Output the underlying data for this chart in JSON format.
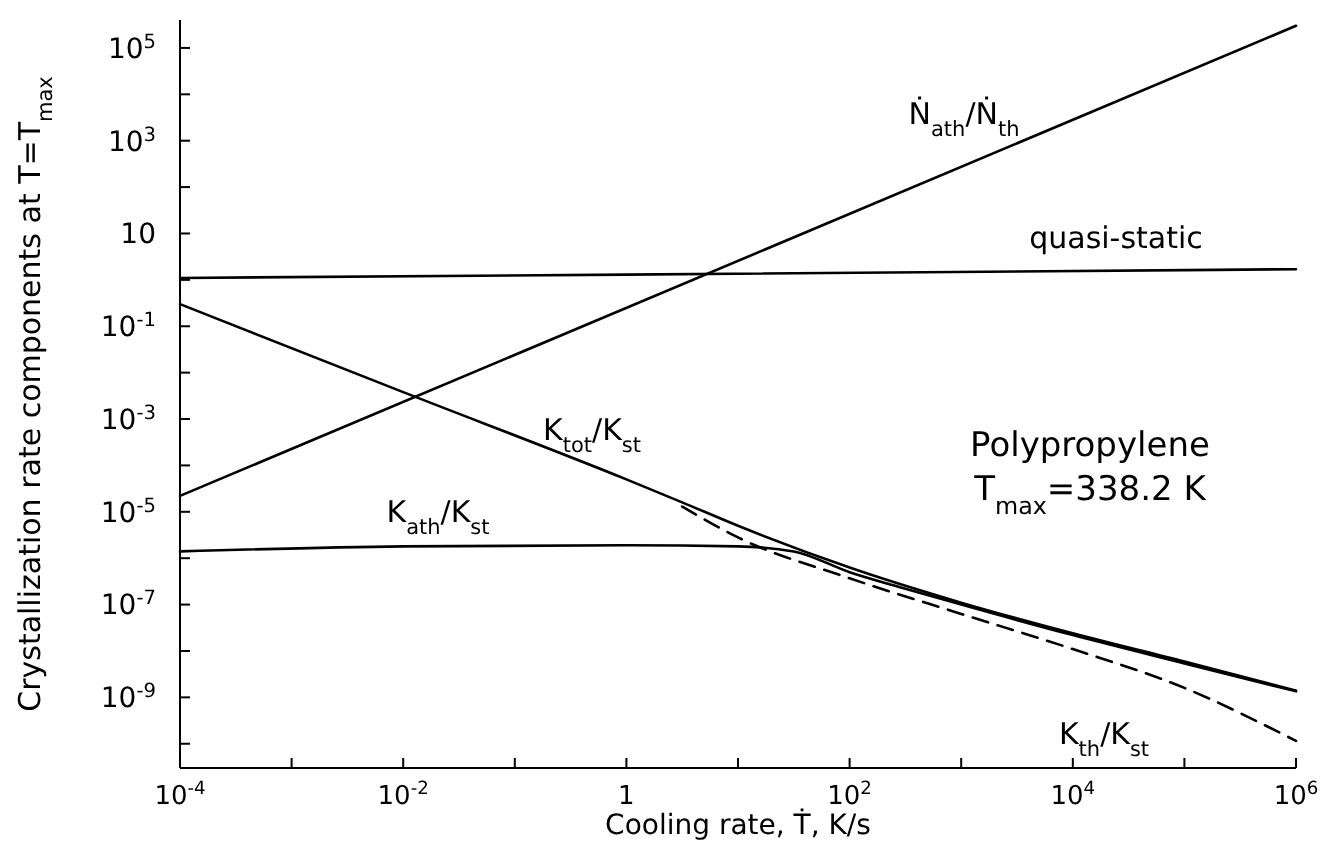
{
  "chart_data": {
    "type": "line",
    "xlabel": "Cooling rate, Ṫ, K/s",
    "ylabel": "Crystallization rate components at T=T$_{max}$",
    "log": "xy",
    "grid": false,
    "marker": "none",
    "xlim": [
      0.0001,
      1000000
    ],
    "ylim": [
      3e-11,
      400000
    ],
    "xticks": [
      {
        "value": 0.0001,
        "label": "10$^{-4}$"
      },
      {
        "value": 0.001,
        "label": null
      },
      {
        "value": 0.01,
        "label": "10$^{-2}$"
      },
      {
        "value": 0.1,
        "label": null
      },
      {
        "value": 1,
        "label": "1"
      },
      {
        "value": 10,
        "label": null
      },
      {
        "value": 100,
        "label": "10$^{2}$"
      },
      {
        "value": 1000,
        "label": null
      },
      {
        "value": 10000,
        "label": "10$^{4}$"
      },
      {
        "value": 100000,
        "label": null
      },
      {
        "value": 1000000,
        "label": "10$^{6}$"
      }
    ],
    "yticks": [
      {
        "value": 100000,
        "label": "10$^{5}$"
      },
      {
        "value": 10000,
        "label": null
      },
      {
        "value": 1000,
        "label": "10$^{3}$"
      },
      {
        "value": 100,
        "label": null
      },
      {
        "value": 10,
        "label": "10"
      },
      {
        "value": 1,
        "label": null
      },
      {
        "value": 0.1,
        "label": "10$^{-1}$"
      },
      {
        "value": 0.01,
        "label": null
      },
      {
        "value": 0.001,
        "label": "10$^{-3}$"
      },
      {
        "value": 0.0001,
        "label": null
      },
      {
        "value": 1e-05,
        "label": "10$^{-5}$"
      },
      {
        "value": 1e-06,
        "label": null
      },
      {
        "value": 1e-07,
        "label": "10$^{-7}$"
      },
      {
        "value": 1e-08,
        "label": null
      },
      {
        "value": 1e-09,
        "label": "10$^{-9}$"
      },
      {
        "value": 1e-10,
        "label": null
      }
    ],
    "series": [
      {
        "name": "Ṅ$_{ath}$/Ṅ$_{th}$",
        "color": "#000000",
        "x": [
          0.0001,
          1000000
        ],
        "values": [
          2.2e-05,
          300000
        ]
      },
      {
        "name": "quasi-static",
        "color": "#000000",
        "x": [
          0.0001,
          1,
          1000000
        ],
        "values": [
          1.1,
          1.3,
          1.7
        ]
      },
      {
        "name": "K$_{tot}$/K$_{st}$",
        "color": "#000000",
        "x": [
          0.0001,
          0.01,
          1,
          3.16,
          10,
          100,
          1000,
          10000,
          100000,
          1000000
        ],
        "values": [
          0.3,
          0.0038,
          5e-05,
          1.6e-05,
          5e-06,
          6.3e-07,
          1.1e-07,
          2.4e-08,
          5.9e-09,
          1.4e-09
        ]
      },
      {
        "name": "K$_{ath}$/K$_{st}$",
        "color": "#000000",
        "x": [
          0.0001,
          0.01,
          1,
          10,
          31.6,
          100,
          316,
          1000,
          10000,
          100000,
          1000000
        ],
        "values": [
          1.4e-06,
          1.8e-06,
          1.9e-06,
          1.8e-06,
          1.4e-06,
          5e-07,
          2.2e-07,
          1e-07,
          2.2e-08,
          5.4e-09,
          1.35e-09
        ]
      },
      {
        "name": "K$_{th}$/K$_{st}$",
        "color": "#000000",
        "line_style": "dashed",
        "x": [
          3.16,
          10,
          100,
          1000,
          10000,
          100000,
          1000000
        ],
        "values": [
          1.3e-05,
          2.8e-06,
          3.7e-07,
          6.3e-08,
          1.1e-08,
          1.6e-09,
          1.15e-10
        ]
      }
    ],
    "annotations": [
      "Polypropylene",
      "T$_{max}$=338.2 K"
    ]
  }
}
